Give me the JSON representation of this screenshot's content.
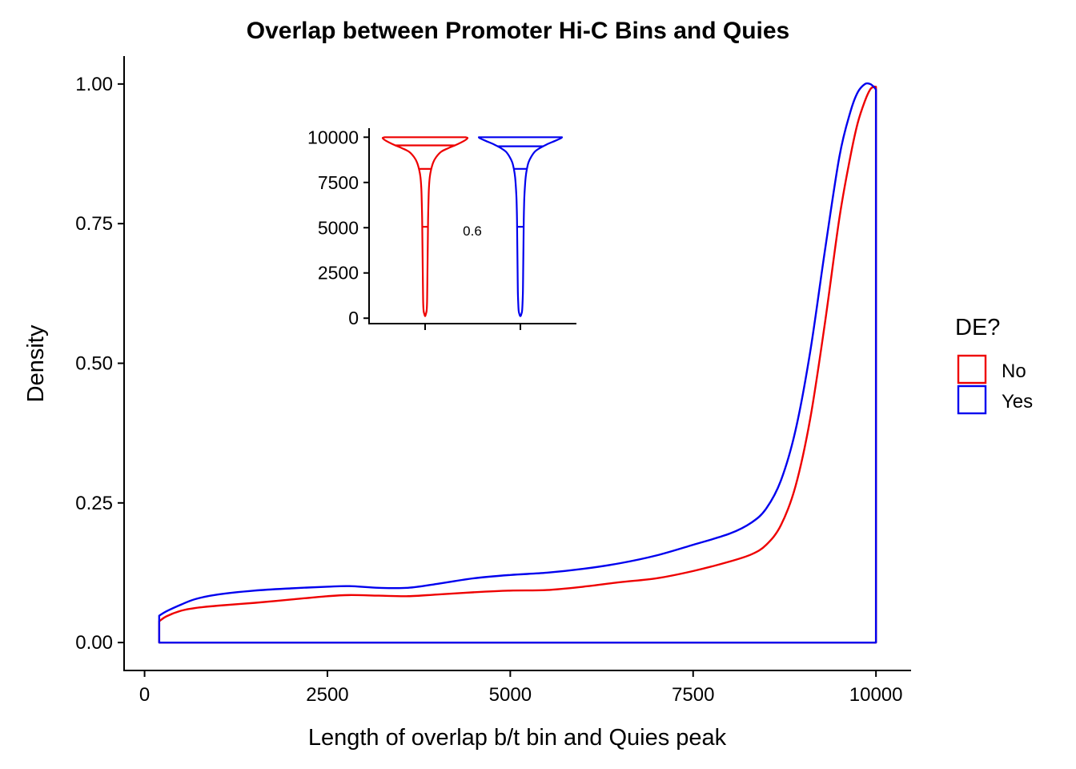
{
  "chart_data": [
    {
      "type": "area",
      "title": "Overlap between Promoter Hi-C Bins and Quies",
      "xlabel": "Length of overlap b/t bin and Quies peak",
      "ylabel": "Density",
      "xlim": [
        -280,
        10480
      ],
      "ylim": [
        -0.05,
        1.05
      ],
      "x_ticks": [
        0,
        2500,
        5000,
        7500,
        10000
      ],
      "x_tick_labels": [
        "0",
        "2500",
        "5000",
        "7500",
        "10000"
      ],
      "y_ticks": [
        0,
        0.25,
        0.5,
        0.75,
        1.0
      ],
      "y_tick_labels": [
        "0.00",
        "0.25",
        "0.50",
        "0.75",
        "1.00"
      ],
      "grid": false,
      "legend": {
        "title": "DE?",
        "placement": "right",
        "entries": [
          {
            "label": "No",
            "color": "#ee0000"
          },
          {
            "label": "Yes",
            "color": "#0000ee"
          }
        ]
      },
      "series": [
        {
          "name": "No",
          "color": "#ee0000",
          "x": [
            200,
            300,
            500,
            700,
            1000,
            1500,
            2000,
            2500,
            2800,
            3200,
            3600,
            4000,
            4500,
            5000,
            5500,
            6000,
            6500,
            7000,
            7500,
            8000,
            8300,
            8500,
            8700,
            8900,
            9100,
            9300,
            9500,
            9650,
            9750,
            9850,
            9920,
            9970,
            10000
          ],
          "y": [
            0.038,
            0.047,
            0.057,
            0.062,
            0.066,
            0.071,
            0.077,
            0.083,
            0.085,
            0.084,
            0.083,
            0.086,
            0.09,
            0.093,
            0.094,
            0.1,
            0.108,
            0.115,
            0.128,
            0.145,
            0.158,
            0.175,
            0.21,
            0.28,
            0.4,
            0.57,
            0.76,
            0.87,
            0.93,
            0.97,
            0.99,
            0.995,
            0.995
          ]
        },
        {
          "name": "Yes",
          "color": "#0000ee",
          "x": [
            200,
            300,
            500,
            700,
            1000,
            1500,
            2000,
            2500,
            2800,
            3200,
            3600,
            4000,
            4500,
            5000,
            5500,
            6000,
            6500,
            7000,
            7500,
            8000,
            8300,
            8500,
            8700,
            8900,
            9100,
            9300,
            9500,
            9650,
            9750,
            9850,
            9920,
            9970,
            10000
          ],
          "y": [
            0.048,
            0.056,
            0.068,
            0.078,
            0.086,
            0.093,
            0.097,
            0.1,
            0.101,
            0.098,
            0.098,
            0.105,
            0.115,
            0.121,
            0.125,
            0.132,
            0.142,
            0.156,
            0.175,
            0.195,
            0.215,
            0.24,
            0.29,
            0.38,
            0.52,
            0.7,
            0.87,
            0.95,
            0.985,
            1.0,
            1.0,
            0.995,
            0.99
          ]
        }
      ]
    },
    {
      "type": "violin",
      "title": "",
      "ylim": [
        -300,
        10500
      ],
      "y_ticks": [
        0,
        2500,
        5000,
        7500,
        10000
      ],
      "y_tick_labels": [
        "0",
        "2500",
        "5000",
        "7500",
        "10000"
      ],
      "annotation": "0.6",
      "grid": false,
      "violins": [
        {
          "group": "No",
          "color": "#ee0000",
          "quantiles": [
            8250,
            5050,
            9550
          ],
          "profile_y": [
            200,
            400,
            800,
            1500,
            2500,
            3500,
            4500,
            5500,
            6500,
            7200,
            7800,
            8200,
            8600,
            8900,
            9200,
            9400,
            9600,
            9800,
            9950,
            10000
          ],
          "profile_halfwidth": [
            1.5,
            3.5,
            4.5,
            5,
            5.5,
            6,
            6.5,
            7,
            8,
            9,
            11,
            14,
            19,
            26,
            38,
            55,
            75,
            92,
            100,
            95
          ]
        },
        {
          "group": "Yes",
          "color": "#0000ee",
          "quantiles": [
            8250,
            5050,
            9500
          ],
          "profile_y": [
            200,
            400,
            800,
            1500,
            2500,
            3500,
            4500,
            5500,
            6500,
            7200,
            7800,
            8200,
            8600,
            8900,
            9200,
            9400,
            9600,
            9800,
            9950,
            10000
          ],
          "profile_halfwidth": [
            2,
            4,
            5,
            6,
            6.5,
            7,
            7.5,
            8,
            9,
            10.5,
            12.5,
            15,
            19,
            25,
            34,
            46,
            62,
            82,
            96,
            98
          ]
        }
      ]
    }
  ]
}
